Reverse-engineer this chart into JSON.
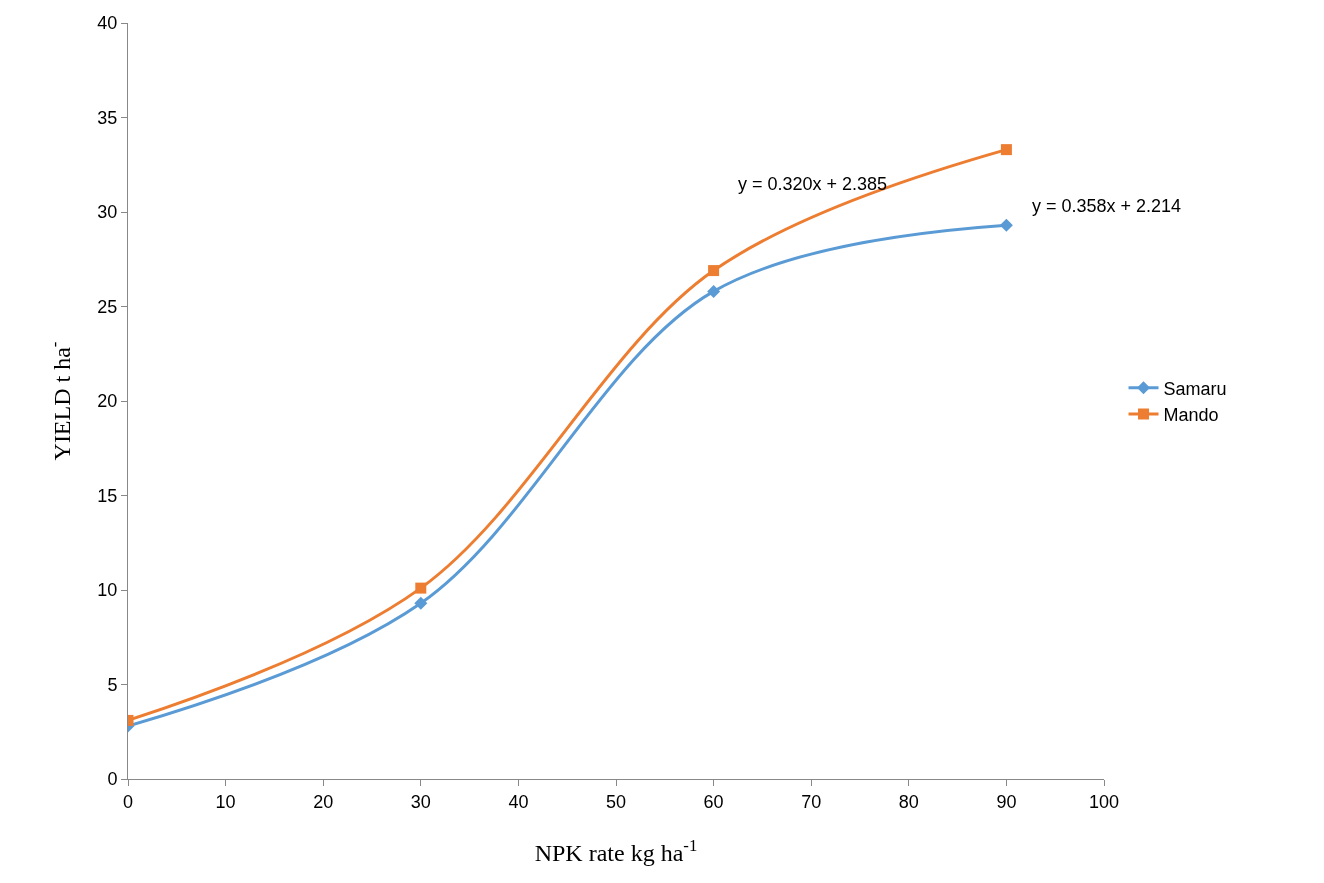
{
  "chart_data": {
    "type": "line",
    "xlabel": "NPK rate kg ha$^{-1}$",
    "ylabel": "YIELD t ha$^{-}$",
    "xlim": [
      0,
      100
    ],
    "xticks": [
      0,
      10,
      20,
      30,
      40,
      50,
      60,
      70,
      80,
      90,
      100
    ],
    "ylim": [
      0,
      40
    ],
    "yticks": [
      0,
      5,
      10,
      15,
      20,
      25,
      30,
      35,
      40
    ],
    "grid": false,
    "legend": "right",
    "line_style": "solid",
    "series": [
      {
        "name": "Samaru",
        "color": "#5b9bd5",
        "marker": "diamond",
        "x": [
          0,
          30,
          60,
          90
        ],
        "values": [
          2.8,
          9.3,
          25.8,
          29.3
        ]
      },
      {
        "name": "Mando",
        "color": "#ed7d31",
        "marker": "square",
        "x": [
          0,
          30,
          60,
          90
        ],
        "values": [
          3.1,
          10.1,
          26.9,
          33.3
        ]
      }
    ],
    "annotations": [
      "y = 0.320x + 2.385",
      "y = 0.358x + 2.214"
    ]
  }
}
